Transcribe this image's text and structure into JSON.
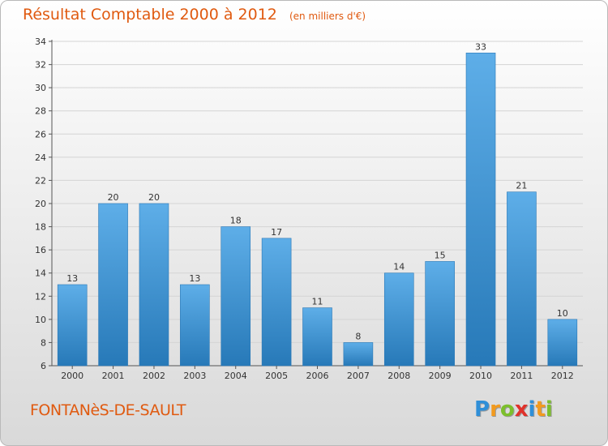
{
  "chart_data": {
    "type": "bar",
    "title": "Résultat Comptable 2000 à 2012",
    "subtitle": "(en milliers d'€)",
    "categories": [
      "2000",
      "2001",
      "2002",
      "2003",
      "2004",
      "2005",
      "2006",
      "2007",
      "2008",
      "2009",
      "2010",
      "2011",
      "2012"
    ],
    "values": [
      13,
      20,
      20,
      13,
      18,
      17,
      11,
      8,
      14,
      15,
      33,
      21,
      10
    ],
    "value_labels": [
      "13",
      "20",
      "20",
      "13",
      "18",
      "17",
      "11",
      "8",
      "14",
      "15",
      "33",
      "21",
      "10"
    ],
    "y_ticks": [
      "6",
      "8",
      "10",
      "12",
      "14",
      "16",
      "18",
      "20",
      "22",
      "24",
      "26",
      "28",
      "30",
      "32",
      "34"
    ],
    "ylim": [
      6,
      34
    ],
    "xlabel": "",
    "ylabel": "",
    "grid": true,
    "bar_color": "#3d94d6"
  },
  "footer": {
    "commune": "FONTANèS-DE-SAULT",
    "logo_letters": [
      "P",
      "r",
      "o",
      "x",
      "i",
      "t",
      "i"
    ],
    "logo_colors": [
      "#2f8fd8",
      "#f29a1e",
      "#7cbf2c",
      "#e0322b",
      "#2f8fd8",
      "#f29a1e",
      "#7cbf2c"
    ]
  }
}
